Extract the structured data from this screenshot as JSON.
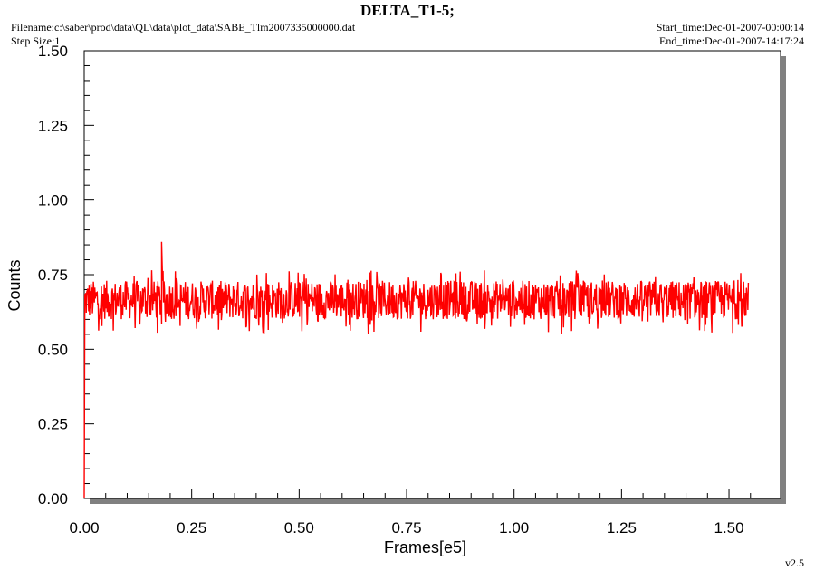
{
  "header": {
    "title": "DELTA_T1-5;",
    "filename": "Filename:c:\\saber\\prod\\data\\QL\\data\\plot_data\\SABE_Tlm2007335000000.dat",
    "step_size": "Step Size:1",
    "start_time": "Start_time:Dec-01-2007-00:00:14",
    "end_time": "End_time:Dec-01-2007-14:17:24"
  },
  "footer": {
    "version": "v2.5"
  },
  "colors": {
    "series": "#ff0000",
    "shadow": "#808080",
    "axis": "#000000",
    "background": "#ffffff"
  },
  "chart_data": {
    "type": "line",
    "title": "DELTA_T1-5;",
    "xlabel": "Frames[e5]",
    "ylabel": "Counts",
    "xlim": [
      0,
      1.62
    ],
    "ylim": [
      0,
      1.5
    ],
    "x_ticks": [
      "0.00",
      "0.25",
      "0.50",
      "0.75",
      "1.00",
      "1.25",
      "1.50"
    ],
    "y_ticks": [
      "0.00",
      "0.25",
      "0.50",
      "0.75",
      "1.00",
      "1.25",
      "1.50"
    ],
    "grid": false,
    "legend": "none",
    "series": [
      {
        "color": "#ff0000",
        "x_range": [
          0,
          1.545
        ],
        "y_mean": 0.665,
        "y_band": [
          0.6,
          0.73
        ],
        "y_min_observed": 0.55,
        "y_max_observed": 0.86,
        "spike": {
          "x": 0.18,
          "y": 0.86
        },
        "start_value": 0.0
      }
    ]
  }
}
